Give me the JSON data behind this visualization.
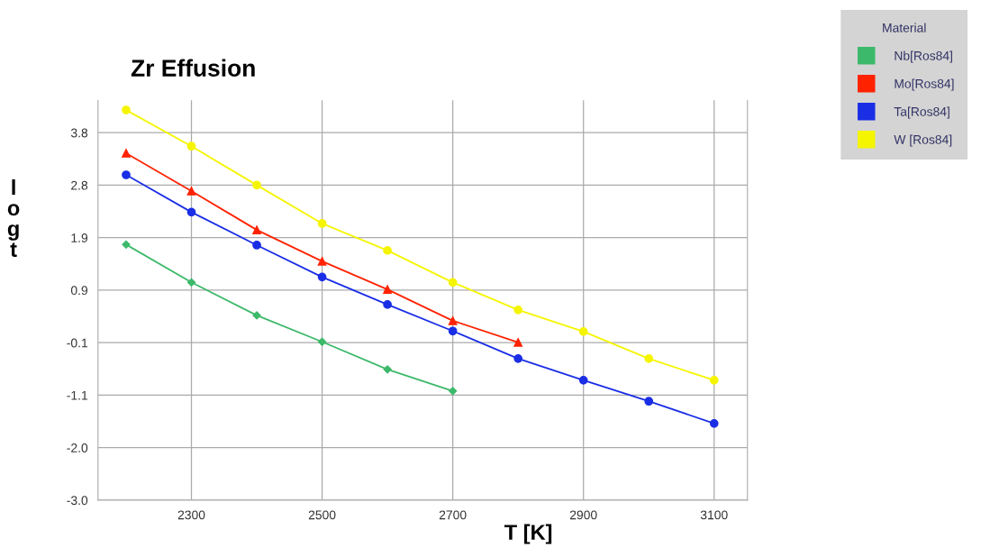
{
  "chart_data": {
    "type": "line",
    "title": "Zr Effusion",
    "xlabel": "T [K]",
    "ylabel": "l\no\ng\nt",
    "legend_title": "Material",
    "x": [
      2200,
      2300,
      2400,
      2500,
      2600,
      2700,
      2800,
      2900,
      3000,
      3100
    ],
    "series": [
      {
        "name": "Nb[Ros84]",
        "color": "#3cb96a",
        "marker": "diamond",
        "values": [
          1.73,
          1.03,
          0.42,
          -0.07,
          -0.58,
          -0.98,
          null,
          null,
          null,
          null
        ]
      },
      {
        "name": "Mo[Ros84]",
        "color": "#ff2200",
        "marker": "triangle",
        "values": [
          3.42,
          2.72,
          2.0,
          1.42,
          0.9,
          0.32,
          -0.08,
          null,
          null,
          null
        ]
      },
      {
        "name": "Ta[Ros84]",
        "color": "#1a2ee6",
        "marker": "circle",
        "values": [
          3.02,
          2.33,
          1.72,
          1.13,
          0.62,
          0.13,
          -0.38,
          -0.78,
          -1.17,
          -1.58
        ]
      },
      {
        "name": "W [Ros84]",
        "color": "#f5f500",
        "marker": "circle",
        "values": [
          4.22,
          3.55,
          2.83,
          2.12,
          1.62,
          1.03,
          0.52,
          0.12,
          -0.38,
          -0.78
        ]
      }
    ],
    "xlim": [
      2157,
      3151
    ],
    "xticks": [
      2300,
      2500,
      2700,
      2900,
      3100
    ],
    "ylim": [
      -3.0,
      4.4
    ],
    "yticks": [
      {
        "value": -3.0,
        "label": "-3.0"
      },
      {
        "value": -2.029,
        "label": "-2.0"
      },
      {
        "value": -1.057,
        "label": "-1.1"
      },
      {
        "value": -0.086,
        "label": "-0.1"
      },
      {
        "value": 0.886,
        "label": "0.9"
      },
      {
        "value": 1.857,
        "label": "1.9"
      },
      {
        "value": 2.829,
        "label": "2.8"
      },
      3.8
    ],
    "grid": true,
    "legend": "top right",
    "line_style": "solid"
  }
}
